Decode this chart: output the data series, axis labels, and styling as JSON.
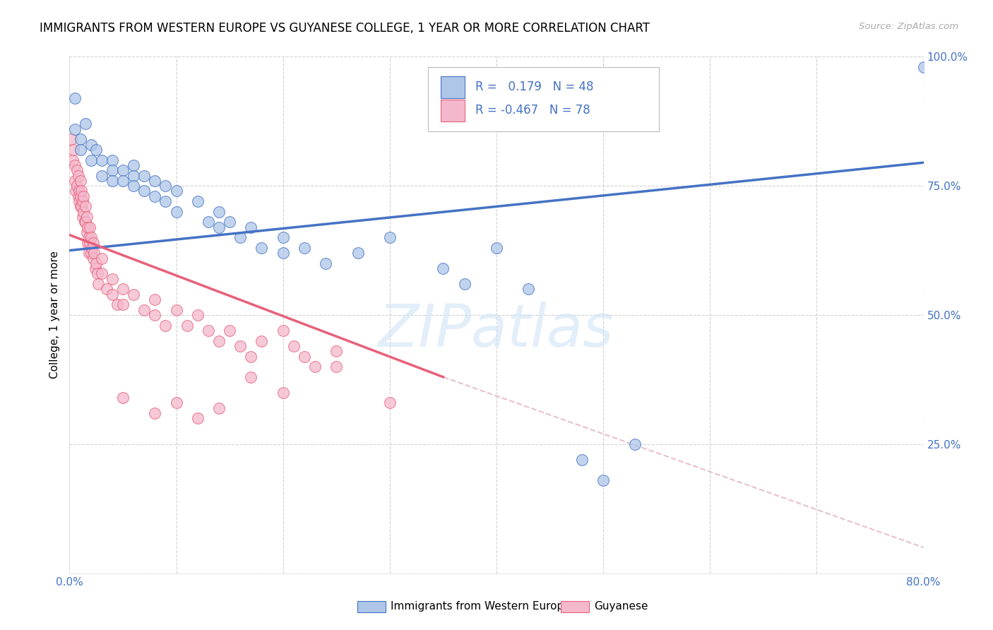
{
  "title": "IMMIGRANTS FROM WESTERN EUROPE VS GUYANESE COLLEGE, 1 YEAR OR MORE CORRELATION CHART",
  "source": "Source: ZipAtlas.com",
  "ylabel": "College, 1 year or more",
  "xmin": 0.0,
  "xmax": 0.8,
  "ymin": 0.0,
  "ymax": 1.0,
  "series1_color": "#aec6e8",
  "series2_color": "#f4b8cc",
  "line1_color": "#4472c4",
  "line2_color": "#e8607a",
  "dashed_line_color": "#e8c0cc",
  "blue_r": 0.179,
  "blue_n": 48,
  "pink_r": -0.467,
  "pink_n": 78,
  "blue_line": [
    [
      0.0,
      0.625
    ],
    [
      0.8,
      0.795
    ]
  ],
  "pink_line": [
    [
      0.0,
      0.655
    ],
    [
      0.35,
      0.38
    ]
  ],
  "dashed_line": [
    [
      0.35,
      0.38
    ],
    [
      0.8,
      0.05
    ]
  ],
  "blue_points": [
    [
      0.005,
      0.92
    ],
    [
      0.005,
      0.86
    ],
    [
      0.01,
      0.84
    ],
    [
      0.01,
      0.82
    ],
    [
      0.015,
      0.87
    ],
    [
      0.02,
      0.83
    ],
    [
      0.02,
      0.8
    ],
    [
      0.025,
      0.82
    ],
    [
      0.03,
      0.8
    ],
    [
      0.03,
      0.77
    ],
    [
      0.04,
      0.8
    ],
    [
      0.04,
      0.78
    ],
    [
      0.04,
      0.76
    ],
    [
      0.05,
      0.78
    ],
    [
      0.05,
      0.76
    ],
    [
      0.06,
      0.79
    ],
    [
      0.06,
      0.77
    ],
    [
      0.06,
      0.75
    ],
    [
      0.07,
      0.77
    ],
    [
      0.07,
      0.74
    ],
    [
      0.08,
      0.76
    ],
    [
      0.08,
      0.73
    ],
    [
      0.09,
      0.75
    ],
    [
      0.09,
      0.72
    ],
    [
      0.1,
      0.74
    ],
    [
      0.1,
      0.7
    ],
    [
      0.12,
      0.72
    ],
    [
      0.13,
      0.68
    ],
    [
      0.14,
      0.7
    ],
    [
      0.14,
      0.67
    ],
    [
      0.15,
      0.68
    ],
    [
      0.16,
      0.65
    ],
    [
      0.17,
      0.67
    ],
    [
      0.18,
      0.63
    ],
    [
      0.2,
      0.65
    ],
    [
      0.2,
      0.62
    ],
    [
      0.22,
      0.63
    ],
    [
      0.24,
      0.6
    ],
    [
      0.27,
      0.62
    ],
    [
      0.3,
      0.65
    ],
    [
      0.35,
      0.59
    ],
    [
      0.37,
      0.56
    ],
    [
      0.4,
      0.63
    ],
    [
      0.43,
      0.55
    ],
    [
      0.48,
      0.22
    ],
    [
      0.5,
      0.18
    ],
    [
      0.53,
      0.25
    ],
    [
      0.8,
      0.98
    ]
  ],
  "pink_points": [
    [
      0.002,
      0.84
    ],
    [
      0.003,
      0.8
    ],
    [
      0.004,
      0.82
    ],
    [
      0.005,
      0.79
    ],
    [
      0.005,
      0.76
    ],
    [
      0.006,
      0.74
    ],
    [
      0.007,
      0.78
    ],
    [
      0.007,
      0.75
    ],
    [
      0.008,
      0.73
    ],
    [
      0.008,
      0.77
    ],
    [
      0.009,
      0.74
    ],
    [
      0.009,
      0.72
    ],
    [
      0.01,
      0.76
    ],
    [
      0.01,
      0.73
    ],
    [
      0.01,
      0.71
    ],
    [
      0.011,
      0.74
    ],
    [
      0.011,
      0.71
    ],
    [
      0.012,
      0.72
    ],
    [
      0.012,
      0.69
    ],
    [
      0.013,
      0.73
    ],
    [
      0.013,
      0.7
    ],
    [
      0.014,
      0.68
    ],
    [
      0.015,
      0.71
    ],
    [
      0.015,
      0.68
    ],
    [
      0.016,
      0.66
    ],
    [
      0.016,
      0.69
    ],
    [
      0.017,
      0.67
    ],
    [
      0.017,
      0.64
    ],
    [
      0.018,
      0.65
    ],
    [
      0.018,
      0.62
    ],
    [
      0.019,
      0.67
    ],
    [
      0.019,
      0.64
    ],
    [
      0.02,
      0.62
    ],
    [
      0.02,
      0.65
    ],
    [
      0.021,
      0.63
    ],
    [
      0.022,
      0.61
    ],
    [
      0.022,
      0.64
    ],
    [
      0.023,
      0.62
    ],
    [
      0.024,
      0.59
    ],
    [
      0.025,
      0.6
    ],
    [
      0.026,
      0.58
    ],
    [
      0.027,
      0.56
    ],
    [
      0.03,
      0.61
    ],
    [
      0.03,
      0.58
    ],
    [
      0.035,
      0.55
    ],
    [
      0.04,
      0.57
    ],
    [
      0.04,
      0.54
    ],
    [
      0.045,
      0.52
    ],
    [
      0.05,
      0.55
    ],
    [
      0.05,
      0.52
    ],
    [
      0.06,
      0.54
    ],
    [
      0.07,
      0.51
    ],
    [
      0.08,
      0.53
    ],
    [
      0.08,
      0.5
    ],
    [
      0.09,
      0.48
    ],
    [
      0.1,
      0.51
    ],
    [
      0.11,
      0.48
    ],
    [
      0.12,
      0.5
    ],
    [
      0.13,
      0.47
    ],
    [
      0.14,
      0.45
    ],
    [
      0.15,
      0.47
    ],
    [
      0.16,
      0.44
    ],
    [
      0.17,
      0.42
    ],
    [
      0.18,
      0.45
    ],
    [
      0.2,
      0.47
    ],
    [
      0.21,
      0.44
    ],
    [
      0.22,
      0.42
    ],
    [
      0.23,
      0.4
    ],
    [
      0.25,
      0.43
    ],
    [
      0.05,
      0.34
    ],
    [
      0.08,
      0.31
    ],
    [
      0.1,
      0.33
    ],
    [
      0.12,
      0.3
    ],
    [
      0.14,
      0.32
    ],
    [
      0.17,
      0.38
    ],
    [
      0.2,
      0.35
    ],
    [
      0.25,
      0.4
    ],
    [
      0.3,
      0.33
    ]
  ]
}
